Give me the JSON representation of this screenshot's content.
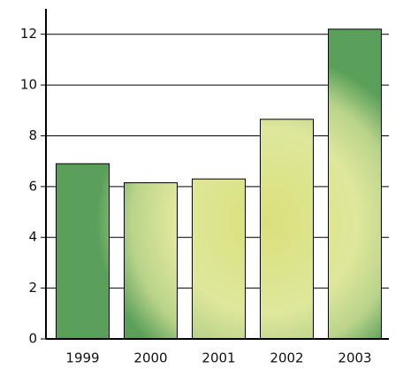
{
  "chart_data": {
    "type": "bar",
    "categories": [
      "1999",
      "2000",
      "2001",
      "2002",
      "2003"
    ],
    "values": [
      6.9,
      6.15,
      6.3,
      8.65,
      12.2
    ],
    "color": "#d6e08a",
    "ylim": [
      0,
      13
    ],
    "yticks": [
      0,
      2,
      4,
      6,
      8,
      10,
      12
    ],
    "grid": true
  }
}
